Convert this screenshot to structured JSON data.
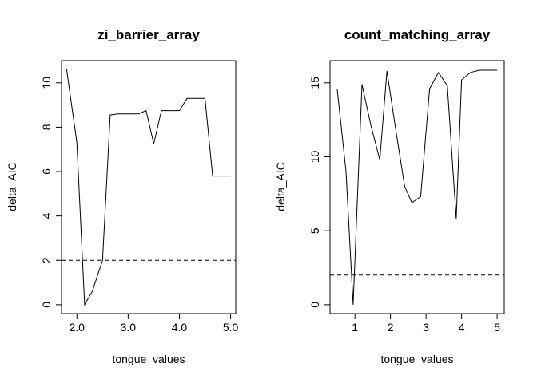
{
  "chart_data": [
    {
      "type": "line",
      "title": "zi_barrier_array",
      "xlabel": "tongue_values",
      "ylabel": "delta_AIC",
      "xlim": [
        1.7,
        5.1
      ],
      "ylim": [
        -0.4,
        11.0
      ],
      "xticks": [
        2.0,
        3.0,
        4.0,
        5.0
      ],
      "xtick_labels": [
        "2.0",
        "3.0",
        "4.0",
        "5.0"
      ],
      "yticks": [
        0,
        2,
        4,
        6,
        8,
        10
      ],
      "ytick_labels": [
        "0",
        "2",
        "4",
        "6",
        "8",
        "10"
      ],
      "reference_line": {
        "y": 2,
        "style": "dashed"
      },
      "series": [
        {
          "x": [
            1.8,
            2.0,
            2.15,
            2.3,
            2.5,
            2.65,
            2.8,
            3.0,
            3.2,
            3.35,
            3.5,
            3.65,
            3.8,
            4.0,
            4.15,
            4.3,
            4.5,
            4.65,
            4.8,
            5.0
          ],
          "y": [
            10.6,
            7.3,
            0.0,
            0.6,
            2.0,
            8.55,
            8.6,
            8.6,
            8.6,
            8.75,
            7.25,
            8.75,
            8.75,
            8.75,
            9.3,
            9.3,
            9.3,
            5.8,
            5.8,
            5.8
          ]
        }
      ],
      "grid": false
    },
    {
      "type": "line",
      "title": "count_matching_array",
      "xlabel": "tongue_values",
      "ylabel": "delta_AIC",
      "xlim": [
        0.3,
        5.2
      ],
      "ylim": [
        -0.6,
        16.5
      ],
      "xticks": [
        1,
        2,
        3,
        4,
        5
      ],
      "xtick_labels": [
        "1",
        "2",
        "3",
        "4",
        "5"
      ],
      "yticks": [
        0,
        5,
        10,
        15
      ],
      "ytick_labels": [
        "0",
        "5",
        "10",
        "15"
      ],
      "reference_line": {
        "y": 2,
        "style": "dashed"
      },
      "series": [
        {
          "x": [
            0.5,
            0.75,
            0.95,
            1.2,
            1.45,
            1.7,
            1.9,
            2.15,
            2.4,
            2.6,
            2.85,
            3.1,
            3.35,
            3.6,
            3.85,
            4.0,
            4.25,
            4.5,
            4.75,
            5.0
          ],
          "y": [
            14.6,
            9.0,
            0.0,
            14.9,
            12.1,
            9.8,
            15.8,
            11.8,
            8.0,
            6.9,
            7.3,
            14.6,
            15.7,
            14.8,
            5.8,
            15.2,
            15.7,
            15.85,
            15.85,
            15.85
          ]
        }
      ],
      "grid": false
    }
  ]
}
